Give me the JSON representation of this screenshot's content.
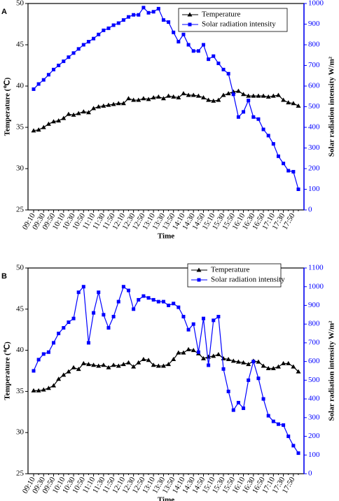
{
  "chart_data": [
    {
      "type": "line",
      "panel_label": "A",
      "x_label": "Time",
      "y_label": "Temperature (℃)",
      "y2_label": "Solar radiation intensity W/m²",
      "categories": [
        "09:10",
        null,
        "09:30",
        null,
        "09:50",
        null,
        "10:10",
        null,
        "10:30",
        null,
        "10:50",
        null,
        "11:10",
        null,
        "11:30",
        null,
        "11:50",
        null,
        "12:10",
        null,
        "12:30",
        null,
        "12:50",
        null,
        "13:10",
        null,
        "13:30",
        null,
        "13:50",
        null,
        "14:10",
        null,
        "14:30",
        null,
        "14:50",
        null,
        "15:10",
        null,
        "15:30",
        null,
        "15:50",
        null,
        "16:10",
        null,
        "16:30",
        null,
        "16:50",
        null,
        "17:10",
        null,
        "17:30",
        null,
        "17:50",
        null
      ],
      "series": [
        {
          "name": "Temperature",
          "color": "#000000",
          "marker": "triangle",
          "axis": "y",
          "values": [
            34.6,
            34.7,
            35.0,
            35.4,
            35.7,
            35.8,
            36.1,
            36.6,
            36.5,
            36.7,
            36.9,
            36.8,
            37.3,
            37.5,
            37.6,
            37.7,
            37.8,
            37.9,
            37.9,
            38.5,
            38.3,
            38.3,
            38.5,
            38.4,
            38.6,
            38.7,
            38.5,
            38.8,
            38.7,
            38.6,
            39.1,
            38.9,
            38.9,
            38.8,
            38.6,
            38.3,
            38.2,
            38.3,
            38.9,
            39.1,
            39.3,
            39.4,
            39.0,
            38.8,
            38.8,
            38.8,
            38.8,
            38.7,
            38.8,
            38.9,
            38.3,
            38.0,
            37.9,
            37.6
          ]
        },
        {
          "name": "Solar radiation intensity",
          "color": "#0000ff",
          "marker": "square",
          "axis": "y2",
          "values": [
            585,
            610,
            630,
            655,
            680,
            700,
            720,
            740,
            760,
            780,
            800,
            815,
            830,
            850,
            870,
            880,
            895,
            905,
            920,
            935,
            945,
            945,
            980,
            955,
            960,
            975,
            920,
            910,
            860,
            815,
            850,
            800,
            770,
            770,
            800,
            730,
            745,
            710,
            680,
            660,
            560,
            450,
            475,
            530,
            450,
            440,
            390,
            360,
            320,
            260,
            225,
            190,
            185,
            100
          ]
        }
      ],
      "ylim": [
        25,
        50
      ],
      "yticks": [
        25,
        30,
        35,
        40,
        45,
        50
      ],
      "y2lim": [
        0,
        1000
      ],
      "y2ticks": [
        0,
        100,
        200,
        300,
        400,
        500,
        600,
        700,
        800,
        900,
        1000
      ]
    },
    {
      "type": "line",
      "panel_label": "B",
      "x_label": "Time",
      "y_label": "Temperature (℃)",
      "y2_label": "Solar radiation intensity W/m²",
      "categories": [
        "09:10",
        null,
        "09:30",
        null,
        "09:50",
        null,
        "10:10",
        null,
        "10:30",
        null,
        "10:50",
        null,
        "11:10",
        null,
        "11:30",
        null,
        "11:50",
        null,
        "12:10",
        null,
        "12:30",
        null,
        "12:50",
        null,
        "13:10",
        null,
        "13:30",
        null,
        "13:50",
        null,
        "14:10",
        null,
        "14:30",
        null,
        "14:50",
        null,
        "15:10",
        null,
        "15:30",
        null,
        "15:50",
        null,
        "16:10",
        null,
        "16:30",
        null,
        "16:50",
        null,
        "17:10",
        null,
        "17:30",
        null,
        "17:50",
        null
      ],
      "series": [
        {
          "name": "Temperature",
          "color": "#000000",
          "marker": "triangle",
          "axis": "y",
          "values": [
            35.1,
            35.1,
            35.2,
            35.4,
            35.7,
            36.5,
            37.0,
            37.4,
            37.9,
            37.7,
            38.4,
            38.3,
            38.2,
            38.1,
            38.2,
            37.9,
            38.2,
            38.1,
            38.3,
            38.5,
            38.0,
            38.5,
            38.9,
            38.8,
            38.2,
            38.1,
            38.1,
            38.3,
            38.9,
            39.7,
            39.7,
            40.1,
            40.0,
            39.6,
            39.0,
            39.2,
            39.3,
            39.5,
            39.0,
            38.9,
            38.7,
            38.6,
            38.5,
            38.3,
            38.7,
            38.6,
            38.1,
            37.8,
            37.8,
            38.0,
            38.4,
            38.4,
            38.0,
            37.4
          ]
        },
        {
          "name": "Solar radiation intensity",
          "color": "#0000ff",
          "marker": "square",
          "axis": "y2",
          "values": [
            550,
            610,
            640,
            650,
            700,
            750,
            780,
            810,
            830,
            970,
            1000,
            700,
            860,
            970,
            850,
            780,
            840,
            920,
            1000,
            980,
            880,
            930,
            950,
            940,
            930,
            920,
            920,
            900,
            910,
            890,
            840,
            770,
            800,
            650,
            830,
            580,
            820,
            840,
            560,
            440,
            340,
            380,
            350,
            500,
            600,
            510,
            400,
            310,
            280,
            265,
            260,
            200,
            150,
            110
          ]
        }
      ],
      "ylim": [
        25,
        50
      ],
      "yticks": [
        25,
        30,
        35,
        40,
        45,
        50
      ],
      "y2lim": [
        0,
        1100
      ],
      "y2ticks": [
        0,
        100,
        200,
        300,
        400,
        500,
        600,
        700,
        800,
        900,
        1000,
        1100
      ]
    }
  ]
}
